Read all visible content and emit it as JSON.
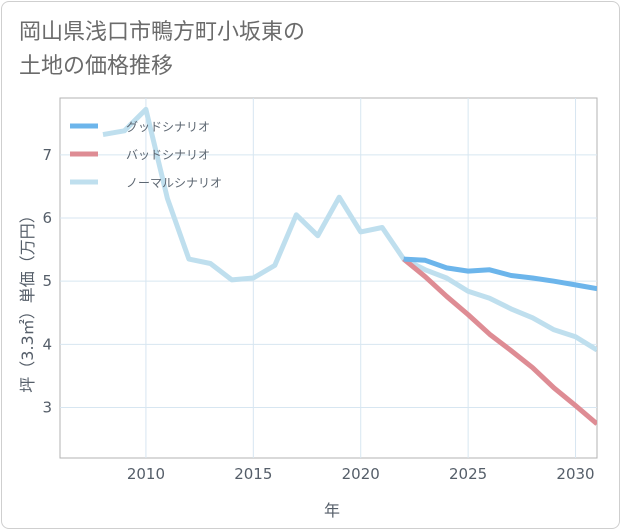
{
  "title": "岡山県浅口市鴨方町小坂東の\n土地の価格推移",
  "chart_data": {
    "type": "line",
    "title": "岡山県浅口市鴨方町小坂東の土地の価格推移",
    "xlabel": "年",
    "ylabel": "坪（3.3㎡）単価（万円）",
    "xlim": [
      2006,
      2031
    ],
    "ylim": [
      2.2,
      7.9
    ],
    "x_ticks": [
      2010,
      2015,
      2020,
      2025,
      2030
    ],
    "y_ticks": [
      3,
      4,
      5,
      6,
      7
    ],
    "grid": true,
    "legend_position": "top-left",
    "series": [
      {
        "name": "グッドシナリオ",
        "color": "#6cb5eb",
        "x": [
          2022,
          2023,
          2024,
          2025,
          2026,
          2027,
          2028,
          2029,
          2030,
          2031
        ],
        "y": [
          5.35,
          5.33,
          5.21,
          5.16,
          5.18,
          5.09,
          5.05,
          5.0,
          4.94,
          4.88
        ]
      },
      {
        "name": "バッドシナリオ",
        "color": "#de8c94",
        "x": [
          2022,
          2023,
          2024,
          2025,
          2026,
          2027,
          2028,
          2029,
          2030,
          2031
        ],
        "y": [
          5.35,
          5.07,
          4.76,
          4.47,
          4.16,
          3.9,
          3.63,
          3.31,
          3.03,
          2.74
        ]
      },
      {
        "name": "ノーマルシナリオ",
        "color": "#bfdfee",
        "x": [
          2008,
          2009,
          2010,
          2011,
          2012,
          2013,
          2014,
          2015,
          2016,
          2017,
          2018,
          2019,
          2020,
          2021,
          2022,
          2023,
          2024,
          2025,
          2026,
          2027,
          2028,
          2029,
          2030,
          2031
        ],
        "y": [
          7.32,
          7.38,
          7.72,
          6.31,
          5.35,
          5.28,
          5.02,
          5.05,
          5.25,
          6.05,
          5.72,
          6.33,
          5.78,
          5.85,
          5.35,
          5.18,
          5.05,
          4.84,
          4.73,
          4.56,
          4.42,
          4.23,
          4.12,
          3.91
        ]
      }
    ]
  }
}
